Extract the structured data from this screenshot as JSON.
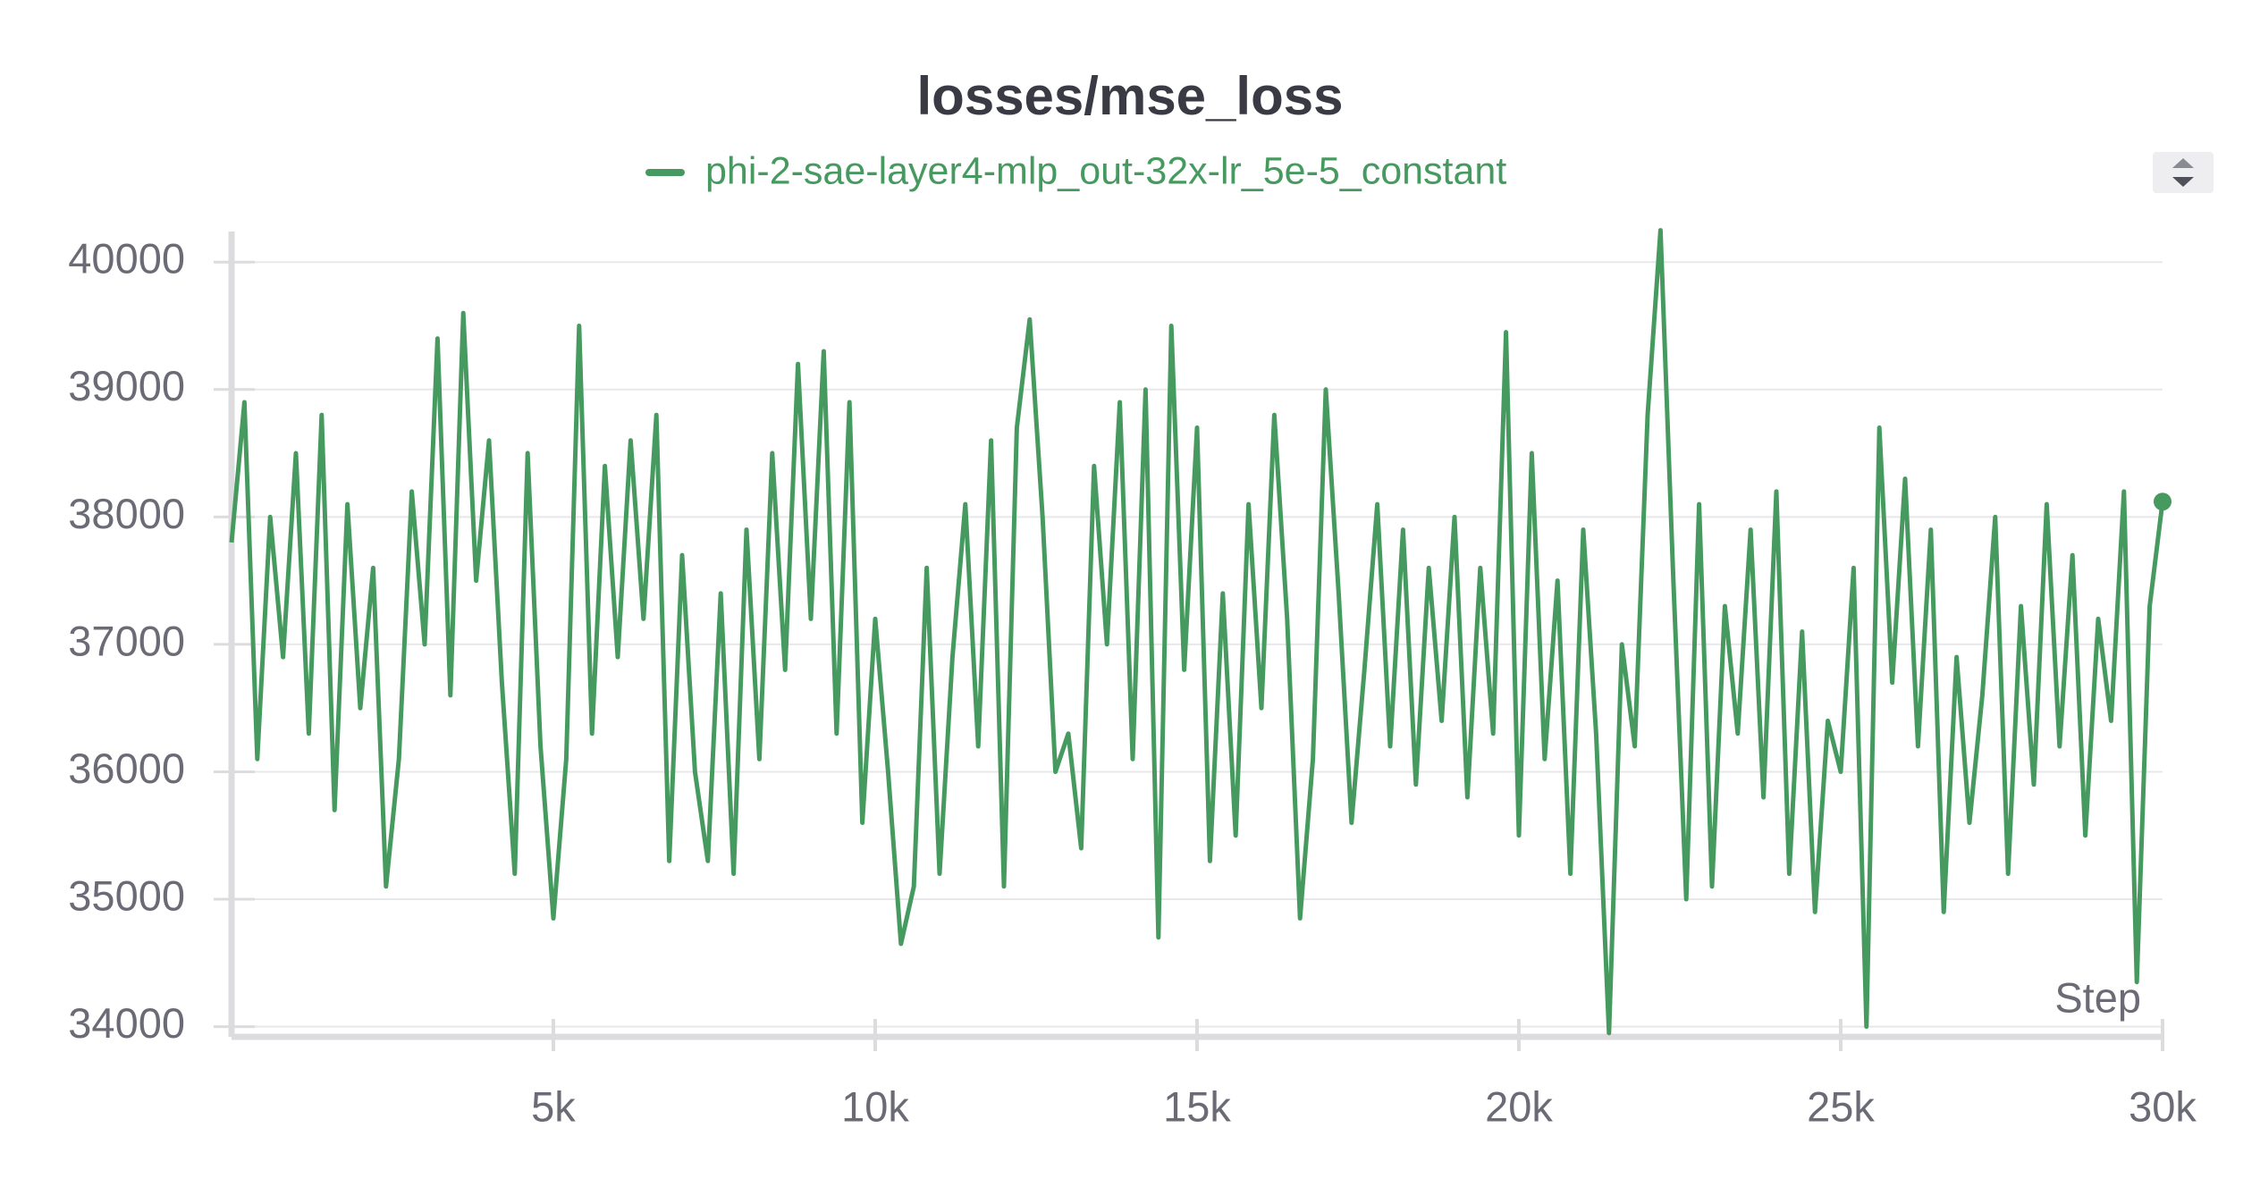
{
  "chart_data": {
    "type": "line",
    "title": "losses/mse_loss",
    "x_label": "Step",
    "xlim": [
      0,
      30000
    ],
    "xticks": [
      {
        "value": 5000,
        "label": "5k"
      },
      {
        "value": 10000,
        "label": "10k"
      },
      {
        "value": 15000,
        "label": "15k"
      },
      {
        "value": 20000,
        "label": "20k"
      },
      {
        "value": 25000,
        "label": "25k"
      },
      {
        "value": 30000,
        "label": "30k"
      }
    ],
    "ylim": [
      33920,
      40240
    ],
    "yticks": [
      34000,
      35000,
      36000,
      37000,
      38000,
      39000,
      40000
    ],
    "grid": true,
    "x": [
      0,
      200,
      400,
      600,
      800,
      1000,
      1200,
      1400,
      1600,
      1800,
      2000,
      2200,
      2400,
      2600,
      2800,
      3000,
      3200,
      3400,
      3600,
      3800,
      4000,
      4200,
      4400,
      4600,
      4800,
      5000,
      5200,
      5400,
      5600,
      5800,
      6000,
      6200,
      6400,
      6600,
      6800,
      7000,
      7200,
      7400,
      7600,
      7800,
      8000,
      8200,
      8400,
      8600,
      8800,
      9000,
      9200,
      9400,
      9600,
      9800,
      10000,
      10200,
      10400,
      10600,
      10800,
      11000,
      11200,
      11400,
      11600,
      11800,
      12000,
      12200,
      12400,
      12600,
      12800,
      13000,
      13200,
      13400,
      13600,
      13800,
      14000,
      14200,
      14400,
      14600,
      14800,
      15000,
      15200,
      15400,
      15600,
      15800,
      16000,
      16200,
      16400,
      16600,
      16800,
      17000,
      17200,
      17400,
      17600,
      17800,
      18000,
      18200,
      18400,
      18600,
      18800,
      19000,
      19200,
      19400,
      19600,
      19800,
      20000,
      20200,
      20400,
      20600,
      20800,
      21000,
      21200,
      21400,
      21600,
      21800,
      22000,
      22200,
      22400,
      22600,
      22800,
      23000,
      23200,
      23400,
      23600,
      23800,
      24000,
      24200,
      24400,
      24600,
      24800,
      25000,
      25200,
      25400,
      25600,
      25800,
      26000,
      26200,
      26400,
      26600,
      26800,
      27000,
      27200,
      27400,
      27600,
      27800,
      28000,
      28200,
      28400,
      28600,
      28800,
      29000,
      29200,
      29400,
      29600,
      29800,
      30000
    ],
    "series": [
      {
        "name": "phi-2-sae-layer4-mlp_out-32x-lr_5e-5_constant",
        "color": "#479a5f",
        "values": [
          37800,
          38900,
          36100,
          38000,
          36900,
          38500,
          36300,
          38800,
          35700,
          38100,
          36500,
          37600,
          35100,
          36100,
          38200,
          37000,
          39400,
          36600,
          39600,
          37500,
          38600,
          36700,
          35200,
          38500,
          36200,
          34850,
          36100,
          39500,
          36300,
          38400,
          36900,
          38600,
          37200,
          38800,
          35300,
          37700,
          36000,
          35300,
          37400,
          35200,
          37900,
          36100,
          38500,
          36800,
          39200,
          37200,
          39300,
          36300,
          38900,
          35600,
          37200,
          36000,
          34650,
          35100,
          37600,
          35200,
          36900,
          38100,
          36200,
          38600,
          35100,
          38700,
          39550,
          38000,
          36000,
          36300,
          35400,
          38400,
          37000,
          38900,
          36100,
          39000,
          34700,
          39500,
          36800,
          38700,
          35300,
          37400,
          35500,
          38100,
          36500,
          38800,
          37200,
          34850,
          36100,
          39000,
          37400,
          35600,
          36800,
          38100,
          36200,
          37900,
          35900,
          37600,
          36400,
          38000,
          35800,
          37600,
          36300,
          39450,
          35500,
          38500,
          36100,
          37500,
          35200,
          37900,
          36300,
          33950,
          37000,
          36200,
          38800,
          40250,
          37500,
          35000,
          38100,
          35100,
          37300,
          36300,
          37900,
          35800,
          38200,
          35200,
          37100,
          34900,
          36400,
          36000,
          37600,
          34000,
          38700,
          36700,
          38300,
          36200,
          37900,
          34900,
          36900,
          35600,
          36600,
          38000,
          35200,
          37300,
          35900,
          38100,
          36200,
          37700,
          35500,
          37200,
          36400,
          38200,
          34350,
          37300,
          38120
        ]
      }
    ]
  }
}
